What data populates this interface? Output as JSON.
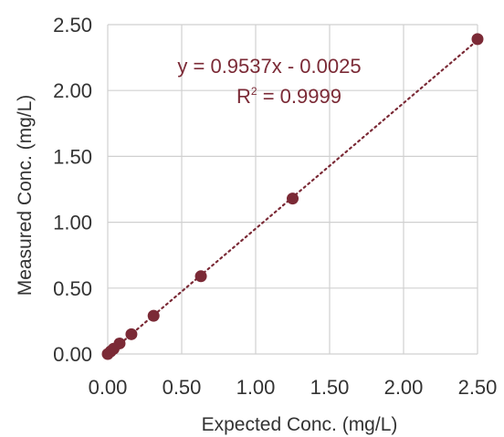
{
  "chart_data": {
    "type": "scatter",
    "title": "",
    "xlabel": "Expected Conc. (mg/L)",
    "ylabel": "Measured Conc. (mg/L)",
    "xlim": [
      0,
      2.5
    ],
    "ylim": [
      0,
      2.5
    ],
    "x_ticks": [
      "0.00",
      "0.50",
      "1.00",
      "1.50",
      "2.00",
      "2.50"
    ],
    "y_ticks": [
      "0.00",
      "0.50",
      "1.00",
      "1.50",
      "2.00",
      "2.50"
    ],
    "grid": true,
    "legend": "none",
    "series": [
      {
        "x": [
          0.0,
          0.02,
          0.04,
          0.08,
          0.16,
          0.31,
          0.63,
          1.25,
          2.5
        ],
        "y": [
          0.0,
          0.02,
          0.04,
          0.08,
          0.15,
          0.29,
          0.59,
          1.18,
          2.39
        ]
      }
    ],
    "trendline": {
      "style": "dotted",
      "slope": 0.9537,
      "intercept": -0.0025
    },
    "annotations": {
      "equation": "y = 0.9537x - 0.0025",
      "r_squared_prefix": "R",
      "r_squared_sup": "2",
      "r_squared_suffix": " = 0.9999"
    },
    "colors": {
      "marker": "#7b2a36",
      "trendline": "#7b2a36",
      "grid": "#d0d0d0",
      "text": "#333333"
    }
  }
}
